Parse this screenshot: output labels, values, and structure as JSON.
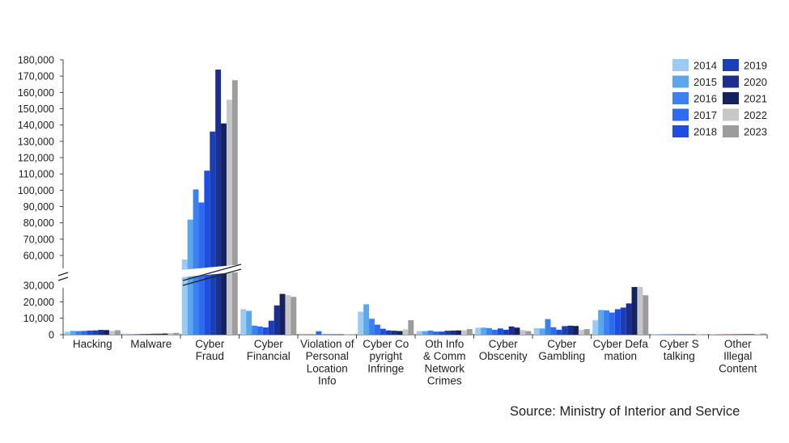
{
  "source": "Source: Ministry of Interior and Service",
  "chart_data": {
    "type": "bar",
    "title": "",
    "xlabel": "",
    "ylabel": "",
    "broken_axis": true,
    "ylim_lower": [
      0,
      30000
    ],
    "ylim_upper": [
      60000,
      180000
    ],
    "y_ticks": [
      "180,000",
      "170,000",
      "160,000",
      "150,000",
      "140,000",
      "130,000",
      "120,000",
      "110,000",
      "100,000",
      "90,000",
      "80,000",
      "70,000",
      "60,000",
      "30,000",
      "20,000",
      "10,000",
      "0"
    ],
    "legend_position": "top-right",
    "grid": false,
    "categories": [
      [
        "Hacking"
      ],
      [
        "Malware"
      ],
      [
        "Cyber",
        "Fraud"
      ],
      [
        "Cyber",
        "Financial"
      ],
      [
        "Violation of",
        "Personal",
        "Location",
        "Info"
      ],
      [
        "Cyber Co",
        "pyright",
        "Infringe"
      ],
      [
        "Oth Info",
        "& Comm",
        "Network",
        "Crimes"
      ],
      [
        "Cyber",
        "Obscenity"
      ],
      [
        "Cyber",
        "Gambling"
      ],
      [
        "Cyber Defa",
        "mation"
      ],
      [
        "Cyber S",
        "talking"
      ],
      [
        "Other",
        "Illegal",
        "Content"
      ]
    ],
    "series": [
      {
        "name": "2014",
        "color": "#9ccaf4",
        "values": [
          1800,
          600,
          56000,
          15500,
          600,
          14000,
          2200,
          4200,
          4000,
          8800,
          200,
          300
        ]
      },
      {
        "name": "2015",
        "color": "#5ca6ee",
        "values": [
          2300,
          400,
          82000,
          14500,
          400,
          18500,
          2200,
          4300,
          3800,
          15000,
          200,
          300
        ]
      },
      {
        "name": "2016",
        "color": "#3b82f0",
        "values": [
          2200,
          400,
          100500,
          5500,
          300,
          9700,
          2500,
          4000,
          9500,
          14800,
          200,
          300
        ]
      },
      {
        "name": "2017",
        "color": "#2e6bf2",
        "values": [
          2300,
          500,
          92500,
          5000,
          2100,
          6100,
          1900,
          3000,
          4500,
          13500,
          200,
          300
        ]
      },
      {
        "name": "2018",
        "color": "#1c4fe0",
        "values": [
          2500,
          500,
          112000,
          4400,
          200,
          3600,
          1900,
          3800,
          3000,
          15500,
          200,
          300
        ]
      },
      {
        "name": "2019",
        "color": "#1a3fb8",
        "values": [
          2600,
          600,
          136000,
          8500,
          200,
          2600,
          2400,
          3000,
          5200,
          16500,
          200,
          300
        ]
      },
      {
        "name": "2020",
        "color": "#1a2f8f",
        "values": [
          2900,
          600,
          174000,
          17800,
          200,
          2400,
          2500,
          5000,
          5500,
          19000,
          200,
          300
        ]
      },
      {
        "name": "2021",
        "color": "#14225e",
        "values": [
          2800,
          700,
          141000,
          24800,
          200,
          2200,
          2600,
          4300,
          5300,
          29000,
          200,
          300
        ]
      },
      {
        "name": "2022",
        "color": "#c7c7c7",
        "values": [
          2300,
          1000,
          155500,
          24000,
          200,
          3200,
          2700,
          2800,
          3000,
          29000,
          200,
          400
        ]
      },
      {
        "name": "2023",
        "color": "#9c9c9c",
        "values": [
          2700,
          1100,
          167500,
          23000,
          200,
          8800,
          3400,
          2200,
          3400,
          24000,
          200,
          700
        ]
      }
    ]
  }
}
